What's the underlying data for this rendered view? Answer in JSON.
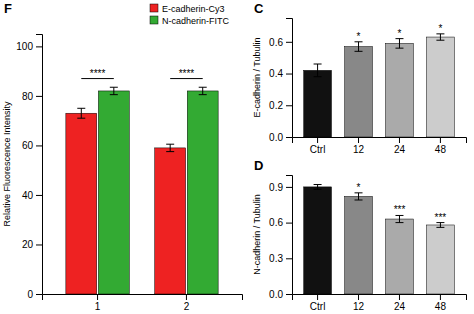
{
  "chart_data": [
    {
      "type": "bar",
      "title": "C",
      "categories": [
        "Ctrl",
        "12",
        "24",
        "48"
      ],
      "values": [
        0.42,
        0.57,
        0.59,
        0.63
      ],
      "errors": [
        0.04,
        0.03,
        0.03,
        0.02
      ],
      "colors": [
        "#111111",
        "#888888",
        "#aaaaaa",
        "#cccccc"
      ],
      "ylabel": "E-cadherin / Tubulin",
      "ylim": [
        0.0,
        0.75
      ],
      "yticks": [
        {
          "value": 0.0,
          "label": "0.0"
        },
        0.2,
        0.4,
        0.6
      ],
      "grid": false,
      "annotations": [
        {
          "text": "*",
          "x": "12"
        },
        {
          "text": "*",
          "x": "24"
        },
        {
          "text": "*",
          "x": "48"
        }
      ]
    },
    {
      "type": "bar",
      "title": "D",
      "categories": [
        "Ctrl",
        "12",
        "24",
        "48"
      ],
      "values": [
        0.9,
        0.82,
        0.63,
        0.58
      ],
      "errors": [
        0.02,
        0.03,
        0.03,
        0.02
      ],
      "colors": [
        "#111111",
        "#888888",
        "#aaaaaa",
        "#cccccc"
      ],
      "ylabel": "N-cadherin / Tubulin",
      "ylim": [
        0.0,
        1.0
      ],
      "yticks": [
        {
          "value": 0.0,
          "label": "0.0"
        },
        0.3,
        0.6,
        0.9
      ],
      "grid": false,
      "annotations": [
        {
          "text": "*",
          "x": "12"
        },
        {
          "text": "***",
          "x": "24"
        },
        {
          "text": "***",
          "x": "48"
        }
      ]
    },
    {
      "type": "bar",
      "title": "F",
      "categories": [
        "1",
        "2"
      ],
      "series": [
        {
          "name": "E-cadherin-Cy3",
          "color": "#ee2222",
          "values": [
            73,
            59
          ],
          "errors": [
            2.0,
            1.5
          ]
        },
        {
          "name": "N-cadherin-FITC",
          "color": "#33aa33",
          "values": [
            82,
            82
          ],
          "errors": [
            1.5,
            1.5
          ]
        }
      ],
      "ylabel": "Relative Fluorescence Intensity",
      "ylim": [
        0,
        105
      ],
      "yticks": [
        0,
        20,
        40,
        60,
        80,
        100
      ],
      "grid": false,
      "legend": "upper right",
      "annotations": [
        {
          "text": "****",
          "x": "1",
          "y": 87
        },
        {
          "text": "****",
          "x": "2",
          "y": 87
        }
      ]
    }
  ]
}
